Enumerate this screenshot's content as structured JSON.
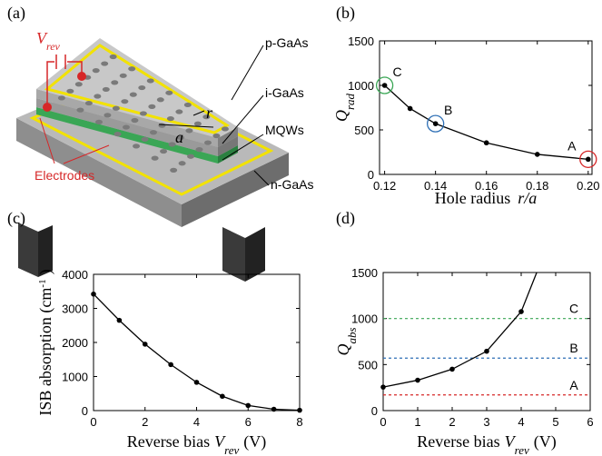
{
  "diagram": {
    "panel_label": "(a)",
    "voltage_symbol": "V",
    "voltage_subscript": "rev",
    "hole_radius_symbol": "r",
    "lattice_symbol": "a",
    "layers": [
      "p-GaAs",
      "i-GaAs",
      "MQWs",
      "n-GaAs"
    ],
    "electrodes": "Electrodes"
  },
  "chart_data": [
    {
      "type": "line",
      "panel_label": "(b)",
      "xlabel": [
        "Hole radius",
        "r/a"
      ],
      "ylabel": [
        "Q",
        "rad"
      ],
      "x": [
        0.12,
        0.13,
        0.14,
        0.16,
        0.18,
        0.2
      ],
      "values": [
        1000,
        740,
        570,
        355,
        225,
        170
      ],
      "color": "#000000",
      "annotations": [
        {
          "text": "C",
          "point": 0,
          "color": "#3aa655"
        },
        {
          "text": "B",
          "point": 2,
          "color": "#2e6fb5"
        },
        {
          "text": "A",
          "point": 5,
          "color": "#d62728"
        }
      ],
      "xlim": [
        0.118,
        0.2015
      ],
      "ylim": [
        0,
        1500
      ],
      "xticks": [
        0.12,
        0.14,
        0.16,
        0.18,
        {
          "value": 0.2,
          "label": "0.20"
        }
      ],
      "yticks": [
        0,
        500,
        1000,
        1500
      ]
    },
    {
      "type": "line",
      "panel_label": "(c)",
      "xlabel": [
        "Reverse bias",
        "V",
        "rev",
        "(V)"
      ],
      "ylabel": [
        "ISB absorption (cm",
        "-1",
        ")"
      ],
      "x": [
        0,
        1,
        2,
        3,
        4,
        5,
        6,
        7,
        8
      ],
      "values": [
        3420,
        2650,
        1950,
        1350,
        830,
        420,
        150,
        40,
        10
      ],
      "color": "#000000",
      "xlim": [
        0,
        8
      ],
      "ylim": [
        0,
        4000
      ],
      "xticks": [
        0,
        2,
        4,
        6,
        8
      ],
      "yticks": [
        0,
        1000,
        2000,
        3000,
        4000
      ]
    },
    {
      "type": "line",
      "panel_label": "(d)",
      "xlabel": [
        "Reverse bias",
        "V",
        "rev",
        "(V)"
      ],
      "ylabel": [
        "Q",
        "abs"
      ],
      "x": [
        0,
        1,
        2,
        3,
        4
      ],
      "values": [
        255,
        330,
        450,
        645,
        1075
      ],
      "curve_x": [
        0,
        1,
        2,
        3,
        4,
        4.45
      ],
      "curve_values": [
        255,
        330,
        450,
        645,
        1075,
        1500
      ],
      "color": "#000000",
      "hlines": [
        {
          "label": "C",
          "value": 1000,
          "color": "#3aa655"
        },
        {
          "label": "B",
          "value": 570,
          "color": "#2e6fb5"
        },
        {
          "label": "A",
          "value": 170,
          "color": "#d62728"
        }
      ],
      "xlim": [
        0,
        6
      ],
      "ylim": [
        0,
        1500
      ],
      "xticks": [
        0,
        1,
        2,
        3,
        4,
        5,
        6
      ],
      "yticks": [
        0,
        500,
        1000,
        1500
      ]
    }
  ]
}
